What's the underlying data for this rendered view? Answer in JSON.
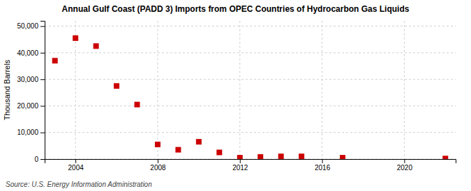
{
  "chart_data": {
    "type": "scatter",
    "title": "Annual Gulf Coast (PADD 3) Imports from OPEC Countries of Hydrocarbon Gas Liquids",
    "ylabel": "Thousand Barrels",
    "annotations": [
      "Source: U.S. Energy Information Administration"
    ],
    "x": [
      2003,
      2004,
      2005,
      2006,
      2007,
      2008,
      2009,
      2010,
      2011,
      2012,
      2013,
      2014,
      2015,
      2017,
      2022
    ],
    "values": [
      37000,
      45500,
      42500,
      27500,
      20500,
      5500,
      3500,
      6500,
      2500,
      500,
      800,
      1000,
      1000,
      500,
      200
    ],
    "color": "#cc0000",
    "marker": "square",
    "xlim": [
      2002.5,
      2022.5
    ],
    "ylim": [
      0,
      52000
    ],
    "xticks": [
      2004,
      2008,
      2012,
      2016,
      2020
    ],
    "yticks": [
      0,
      {
        "value": 10000,
        "label": "10,000"
      },
      {
        "value": 20000,
        "label": "20,000"
      },
      {
        "value": 30000,
        "label": "30,000"
      },
      {
        "value": 40000,
        "label": "40,000"
      },
      {
        "value": 50000,
        "label": "50,000"
      }
    ],
    "grid": true
  }
}
